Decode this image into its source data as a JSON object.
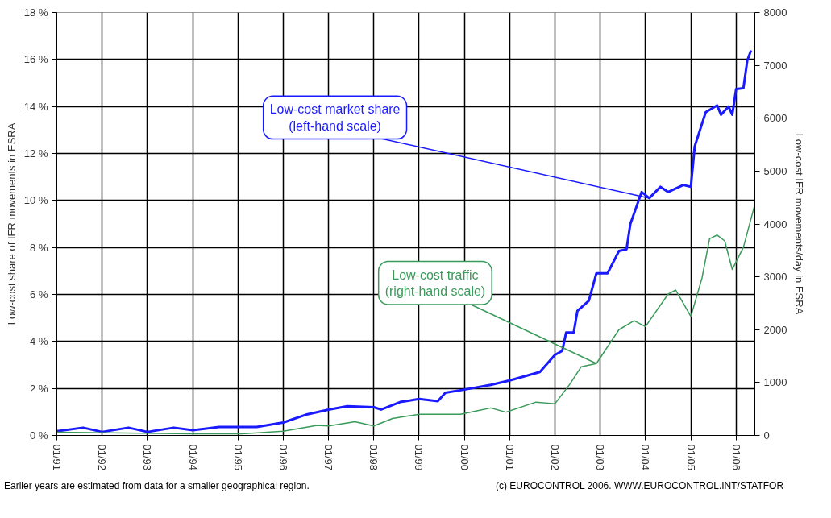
{
  "chart_data": {
    "type": "line",
    "xlabel": null,
    "ylabel": "Low-cost share of IFR movements in ESRA",
    "y2label": "Low-cost IFR movements/day in ESRA",
    "xlim": [
      "1991-01",
      "2006-06"
    ],
    "xticks": [
      {
        "value": "1991-01",
        "label": "01/91"
      },
      {
        "value": "1992-01",
        "label": "01/92"
      },
      {
        "value": "1993-01",
        "label": "01/93"
      },
      {
        "value": "1994-01",
        "label": "01/94"
      },
      {
        "value": "1995-01",
        "label": "01/95"
      },
      {
        "value": "1996-01",
        "label": "01/96"
      },
      {
        "value": "1997-01",
        "label": "01/97"
      },
      {
        "value": "1998-01",
        "label": "01/98"
      },
      {
        "value": "1999-01",
        "label": "01/99"
      },
      {
        "value": "2000-01",
        "label": "01/00"
      },
      {
        "value": "2001-01",
        "label": "01/01"
      },
      {
        "value": "2002-01",
        "label": "01/02"
      },
      {
        "value": "2003-01",
        "label": "01/03"
      },
      {
        "value": "2004-01",
        "label": "01/04"
      },
      {
        "value": "2005-01",
        "label": "01/05"
      },
      {
        "value": "2006-01",
        "label": "01/06"
      }
    ],
    "ylim": [
      0,
      18
    ],
    "yticks": [
      {
        "value": 0,
        "label": "0 %"
      },
      {
        "value": 2,
        "label": "2 %"
      },
      {
        "value": 4,
        "label": "4 %"
      },
      {
        "value": 6,
        "label": "6 %"
      },
      {
        "value": 8,
        "label": "8 %"
      },
      {
        "value": 10,
        "label": "10 %"
      },
      {
        "value": 12,
        "label": "12 %"
      },
      {
        "value": 14,
        "label": "14 %"
      },
      {
        "value": 16,
        "label": "16 %"
      },
      {
        "value": 18,
        "label": "18 %"
      }
    ],
    "y2lim": [
      0,
      8000
    ],
    "y2ticks": [
      0,
      1000,
      2000,
      3000,
      4000,
      5000,
      6000,
      7000,
      8000
    ],
    "grid": true,
    "marker": "none",
    "line_style": "solid",
    "series": [
      {
        "color": "#1a1aff",
        "x": [
          "1991-01",
          "1991-08",
          "1992-01",
          "1992-08",
          "1993-01",
          "1993-08",
          "1994-01",
          "1994-08",
          "1995-01",
          "1995-06",
          "1996-01",
          "1996-07",
          "1997-01",
          "1997-06",
          "1998-01",
          "1998-03",
          "1998-08",
          "1999-01",
          "1999-06",
          "1999-08",
          "2000-01",
          "2000-08",
          "2001-01",
          "2001-09",
          "2002-01",
          "2002-03",
          "2002-04",
          "2002-06",
          "2002-07",
          "2002-10",
          "2002-12",
          "2003-03",
          "2003-06",
          "2003-08",
          "2003-09",
          "2003-12",
          "2004-02",
          "2004-05",
          "2004-07",
          "2004-11",
          "2005-01",
          "2005-02",
          "2005-05",
          "2005-08",
          "2005-09",
          "2005-11",
          "2005-12",
          "2006-01",
          "2006-03",
          "2006-04",
          "2006-05"
        ],
        "values": [
          0.18,
          0.33,
          0.15,
          0.33,
          0.15,
          0.33,
          0.22,
          0.36,
          0.36,
          0.36,
          0.55,
          0.88,
          1.1,
          1.24,
          1.2,
          1.1,
          1.42,
          1.55,
          1.46,
          1.82,
          1.95,
          2.15,
          2.34,
          2.7,
          3.43,
          3.6,
          4.38,
          4.38,
          5.3,
          5.73,
          6.9,
          6.9,
          7.85,
          7.92,
          9.0,
          10.36,
          10.1,
          10.58,
          10.36,
          10.66,
          10.58,
          12.3,
          13.76,
          14.05,
          13.65,
          14.0,
          13.65,
          14.74,
          14.78,
          15.95,
          16.39
        ]
      },
      {
        "color": "#3a9a5a",
        "axis": "y2",
        "x": [
          "1991-01",
          "1994-01",
          "1995-02",
          "1996-01",
          "1996-10",
          "1997-01",
          "1997-08",
          "1998-01",
          "1998-06",
          "1999-01",
          "1999-12",
          "2000-08",
          "2000-12",
          "2001-08",
          "2002-01",
          "2002-05",
          "2002-08",
          "2002-12",
          "2003-06",
          "2003-10",
          "2004-01",
          "2004-07",
          "2004-09",
          "2005-01",
          "2005-04",
          "2005-06",
          "2005-08",
          "2005-10",
          "2005-12",
          "2006-03",
          "2006-06"
        ],
        "values": [
          60,
          30,
          30,
          80,
          190,
          180,
          260,
          180,
          320,
          400,
          400,
          520,
          440,
          630,
          600,
          970,
          1300,
          1360,
          2000,
          2170,
          2060,
          2670,
          2750,
          2250,
          2980,
          3720,
          3790,
          3680,
          3140,
          3560,
          4370
        ]
      }
    ],
    "annotations": [
      "Low-cost market share\n(left-hand scale)",
      {
        "text": "Low-cost traffic\n(right-hand scale)",
        "x": "2002-12",
        "y": 3.06
      },
      "Earlier years are estimated from data for a smaller geographical region.",
      "(c) EUROCONTROL 2006.   WWW.EUROCONTROL.INT/STATFOR"
    ]
  }
}
